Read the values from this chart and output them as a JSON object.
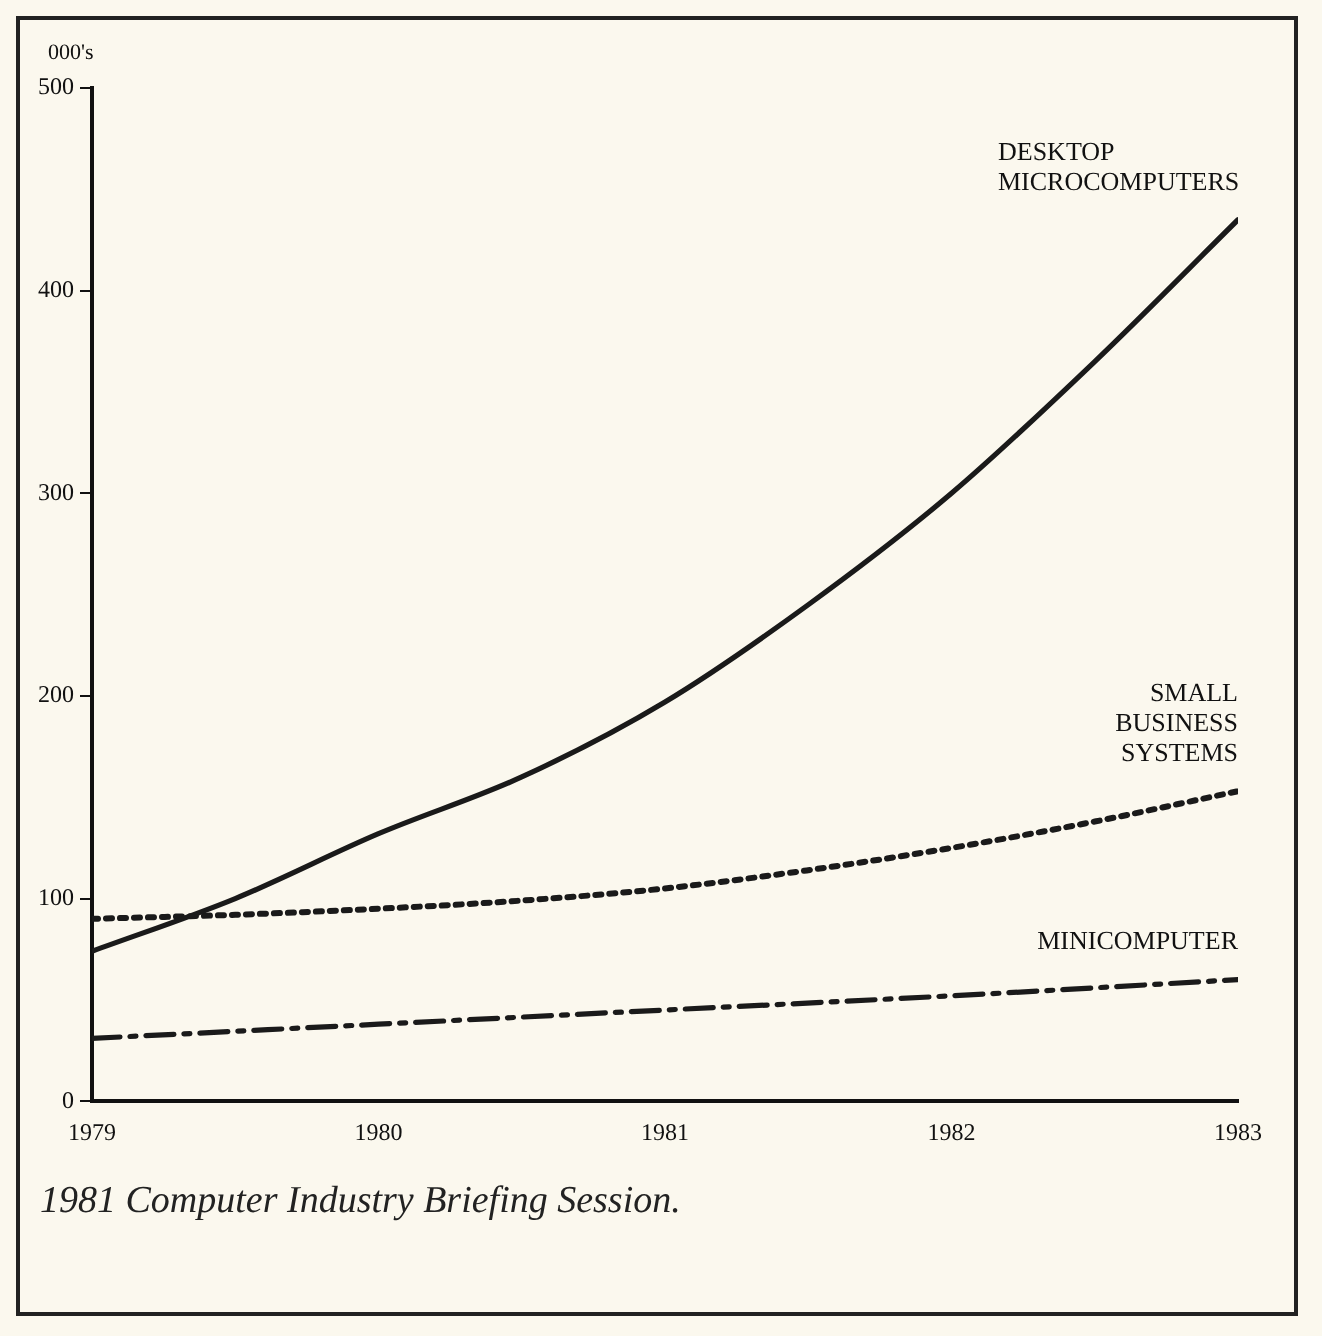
{
  "chart_data": {
    "type": "line",
    "ylabel": "000's",
    "xlim": [
      1979,
      1983
    ],
    "xticks": [
      1979,
      1980,
      1981,
      1982,
      1983
    ],
    "ylim": [
      0,
      500
    ],
    "yticks": [
      0,
      100,
      200,
      300,
      400,
      500
    ],
    "grid": false,
    "legend": false,
    "marker": "none",
    "series": [
      {
        "name": "DESKTOP MICROCOMPUTERS",
        "color": "#1a1a1a",
        "line_style": "solid",
        "x": [
          1979,
          1979.5,
          1980,
          1980.5,
          1981,
          1981.5,
          1982,
          1982.5,
          1983
        ],
        "values": [
          74,
          100,
          132,
          160,
          197,
          245,
          300,
          365,
          435
        ]
      },
      {
        "name": "SMALL BUSINESS SYSTEMS",
        "color": "#1a1a1a",
        "line_style": "dotted",
        "x": [
          1979,
          1979.5,
          1980,
          1980.5,
          1981,
          1981.5,
          1982,
          1982.5,
          1983
        ],
        "values": [
          90,
          92,
          95,
          99,
          105,
          114,
          125,
          138,
          153
        ]
      },
      {
        "name": "MINICOMPUTER",
        "color": "#1a1a1a",
        "line_style": "dashed",
        "x": [
          1979,
          1980,
          1981,
          1982,
          1983
        ],
        "values": [
          31,
          38,
          45,
          52,
          60
        ]
      }
    ],
    "annotations": [
      "1981 Computer Industry Briefing Session."
    ]
  }
}
